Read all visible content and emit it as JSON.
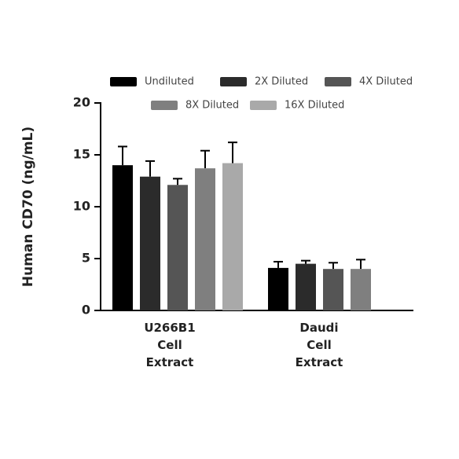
{
  "chart_data": {
    "type": "bar",
    "y_label": "Human CD70 (ng/mL)",
    "categories": [
      "U266B1 Cell Extract",
      "Daudi Cell Extract"
    ],
    "series": [
      {
        "name": "Undiluted",
        "color": "#000000",
        "values": [
          14.0,
          4.1
        ],
        "errors": [
          1.8,
          0.6
        ]
      },
      {
        "name": "2X Diluted",
        "color": "#2b2b2b",
        "values": [
          12.9,
          4.5
        ],
        "errors": [
          1.5,
          0.3
        ]
      },
      {
        "name": "4X Diluted",
        "color": "#555555",
        "values": [
          12.1,
          4.0
        ],
        "errors": [
          0.6,
          0.6
        ]
      },
      {
        "name": "8X Diluted",
        "color": "#7f7f7f",
        "values": [
          13.7,
          4.0
        ],
        "errors": [
          1.7,
          0.9
        ]
      },
      {
        "name": "16X Diluted",
        "color": "#a9a9a9",
        "values": [
          14.2,
          null
        ],
        "errors": [
          2.0,
          null
        ]
      }
    ],
    "ylim": [
      0,
      20
    ],
    "yticks": [
      0,
      5,
      10,
      15,
      20
    ]
  }
}
